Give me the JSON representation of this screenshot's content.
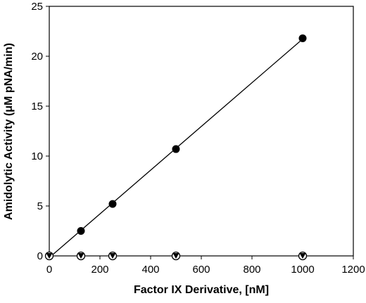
{
  "chart_data": {
    "type": "scatter",
    "title": "",
    "xlabel": "Factor IX Derivative, [nM]",
    "ylabel": "Amidolytic Activity (μM pNA/min)",
    "xlim": [
      0,
      1200
    ],
    "ylim": [
      0,
      25
    ],
    "xticks": [
      0,
      200,
      400,
      600,
      800,
      1000,
      1200
    ],
    "yticks": [
      0,
      5,
      10,
      15,
      20,
      25
    ],
    "grid": false,
    "legend": "none",
    "series": [
      {
        "marker": "filled-circle",
        "color": "#000000",
        "fit_line": true,
        "x": [
          0,
          125,
          250,
          500,
          1000
        ],
        "y": [
          0,
          2.5,
          5.2,
          10.7,
          21.8
        ]
      },
      {
        "marker": "open-circle",
        "color": "#000000",
        "x": [
          0,
          125,
          250,
          500,
          1000
        ],
        "y": [
          0,
          0,
          0,
          0,
          0
        ]
      },
      {
        "marker": "filled-triangle-down",
        "color": "#000000",
        "x": [
          0,
          125,
          250,
          500,
          1000
        ],
        "y": [
          0,
          0,
          0,
          0,
          0
        ]
      }
    ]
  }
}
